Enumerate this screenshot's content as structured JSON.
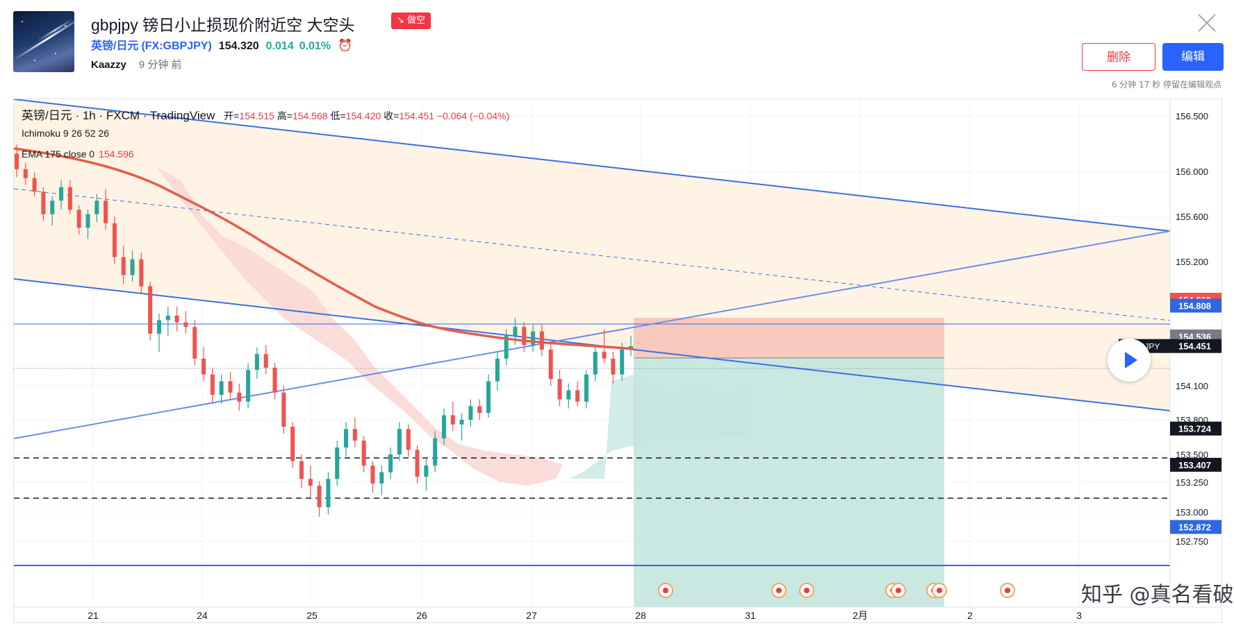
{
  "idea": {
    "title": "gbpjpy 镑日小止损现价附近空 大空头",
    "badge": "↘ 做空",
    "symbol_name": "英镑/日元",
    "symbol_code": "(FX:GBPJPY)",
    "price": "154.320",
    "change": "0.014",
    "change_pct": "0.01%",
    "author": "Kaazzy",
    "time_ago": "9 分钟 前",
    "delete_label": "删除",
    "edit_label": "编辑",
    "edit_note": "6 分钟 17 秒 停留在编辑观点"
  },
  "legend": {
    "symbol": "英镑/日元 · 1h · FXCM · TradingView",
    "open_label": "开=",
    "open": "154.515",
    "high_label": "高=",
    "high": "154.568",
    "low_label": "低=",
    "low": "154.420",
    "close_label": "收=",
    "close": "154.451",
    "change": "−0.064 (−0.04%)",
    "ichimoku": "Ichimoku 9 26 52 26",
    "ema_label": "EMA 175 close 0",
    "ema_value": "154.596"
  },
  "watermark": "知乎 @真名看破",
  "colors": {
    "up": "#26a69a",
    "down": "#ef5350",
    "ema": "#e65b4b",
    "line": "#2f67e0",
    "loss_zone": "#f6c7bd",
    "profit_zone": "#c4e6df",
    "channel": "#fff3e5",
    "cloud": "#f9d7d5",
    "cloud_up": "#d2ece8"
  },
  "chart_data": {
    "type": "candlestick",
    "symbol": "GBPJPY",
    "timeframe": "1h",
    "price_axis": {
      "ticks": [
        "156.500",
        "156.000",
        "155.600",
        "155.200",
        "154.100",
        "153.800",
        "153.500",
        "153.250",
        "153.000",
        "152.750"
      ],
      "labels": [
        {
          "value": "154.860",
          "color": "#ef5350"
        },
        {
          "value": "154.808",
          "color": "#2f67e0"
        },
        {
          "value": "154.536",
          "color": "#787b86"
        },
        {
          "value": "154.451",
          "color": "#131722",
          "tag": "GBPJPY"
        },
        {
          "value": "153.724",
          "color": "#131722"
        },
        {
          "value": "153.407",
          "color": "#131722"
        },
        {
          "value": "152.872",
          "color": "#2f67e0"
        }
      ]
    },
    "time_axis": {
      "ticks": [
        "21",
        "24",
        "25",
        "26",
        "27",
        "28",
        "31",
        "2月",
        "2",
        "3"
      ],
      "ticks_x": [
        0.5,
        1.5,
        2.5,
        3.5,
        4.5,
        5.5,
        6.5,
        7.5,
        8.5,
        9.5
      ]
    },
    "candles_ohlc": [
      [
        156.16,
        156.24,
        155.95,
        156.02
      ],
      [
        156.02,
        156.08,
        155.88,
        155.94
      ],
      [
        155.94,
        155.99,
        155.78,
        155.82
      ],
      [
        155.82,
        155.86,
        155.56,
        155.62
      ],
      [
        155.62,
        155.78,
        155.52,
        155.74
      ],
      [
        155.74,
        155.92,
        155.66,
        155.86
      ],
      [
        155.86,
        155.92,
        155.62,
        155.66
      ],
      [
        155.66,
        155.7,
        155.44,
        155.5
      ],
      [
        155.5,
        155.66,
        155.4,
        155.62
      ],
      [
        155.62,
        155.8,
        155.55,
        155.74
      ],
      [
        155.74,
        155.84,
        155.48,
        155.54
      ],
      [
        155.54,
        155.6,
        155.18,
        155.24
      ],
      [
        155.24,
        155.34,
        155.0,
        155.08
      ],
      [
        155.08,
        155.3,
        155.02,
        155.22
      ],
      [
        155.22,
        155.28,
        154.92,
        154.98
      ],
      [
        154.98,
        155.02,
        154.5,
        154.56
      ],
      [
        154.56,
        154.74,
        154.4,
        154.68
      ],
      [
        154.68,
        154.8,
        154.54,
        154.72
      ],
      [
        154.72,
        154.8,
        154.58,
        154.66
      ],
      [
        154.66,
        154.76,
        154.56,
        154.62
      ],
      [
        154.62,
        154.68,
        154.28,
        154.34
      ],
      [
        154.34,
        154.44,
        154.14,
        154.2
      ],
      [
        154.2,
        154.26,
        153.94,
        154.02
      ],
      [
        154.02,
        154.2,
        153.94,
        154.14
      ],
      [
        154.14,
        154.22,
        153.98,
        154.04
      ],
      [
        154.04,
        154.12,
        153.88,
        153.96
      ],
      [
        153.96,
        154.3,
        153.9,
        154.24
      ],
      [
        154.24,
        154.44,
        154.16,
        154.38
      ],
      [
        154.38,
        154.46,
        154.2,
        154.26
      ],
      [
        154.26,
        154.3,
        153.98,
        154.04
      ],
      [
        154.04,
        154.1,
        153.68,
        153.74
      ],
      [
        153.74,
        153.78,
        153.38,
        153.44
      ],
      [
        153.44,
        153.5,
        153.2,
        153.28
      ],
      [
        153.28,
        153.4,
        153.12,
        153.22
      ],
      [
        153.22,
        153.26,
        152.96,
        153.04
      ],
      [
        153.04,
        153.34,
        152.98,
        153.28
      ],
      [
        153.28,
        153.62,
        153.22,
        153.56
      ],
      [
        153.56,
        153.78,
        153.48,
        153.72
      ],
      [
        153.72,
        153.82,
        153.56,
        153.62
      ],
      [
        153.62,
        153.66,
        153.34,
        153.4
      ],
      [
        153.4,
        153.44,
        153.16,
        153.24
      ],
      [
        153.24,
        153.4,
        153.14,
        153.34
      ],
      [
        153.34,
        153.56,
        153.28,
        153.5
      ],
      [
        153.5,
        153.78,
        153.44,
        153.72
      ],
      [
        153.72,
        153.76,
        153.48,
        153.54
      ],
      [
        153.54,
        153.58,
        153.24,
        153.3
      ],
      [
        153.3,
        153.46,
        153.18,
        153.4
      ],
      [
        153.4,
        153.7,
        153.34,
        153.64
      ],
      [
        153.64,
        153.9,
        153.58,
        153.84
      ],
      [
        153.84,
        153.96,
        153.7,
        153.76
      ],
      [
        153.76,
        153.86,
        153.62,
        153.8
      ],
      [
        153.8,
        153.98,
        153.74,
        153.92
      ],
      [
        153.92,
        153.98,
        153.8,
        153.86
      ],
      [
        153.86,
        154.2,
        153.82,
        154.14
      ],
      [
        154.14,
        154.4,
        154.06,
        154.34
      ],
      [
        154.34,
        154.6,
        154.28,
        154.54
      ],
      [
        154.54,
        154.7,
        154.46,
        154.62
      ],
      [
        154.62,
        154.66,
        154.4,
        154.46
      ],
      [
        154.46,
        154.64,
        154.4,
        154.58
      ],
      [
        154.58,
        154.64,
        154.36,
        154.42
      ],
      [
        154.42,
        154.48,
        154.1,
        154.16
      ],
      [
        154.16,
        154.24,
        153.92,
        153.98
      ],
      [
        153.98,
        154.12,
        153.9,
        154.06
      ],
      [
        154.06,
        154.14,
        153.92,
        153.96
      ],
      [
        153.96,
        154.24,
        153.9,
        154.2
      ],
      [
        154.2,
        154.44,
        154.14,
        154.4
      ],
      [
        154.4,
        154.6,
        154.3,
        154.34
      ],
      [
        154.34,
        154.4,
        154.12,
        154.2
      ],
      [
        154.2,
        154.48,
        154.14,
        154.42
      ],
      [
        154.42,
        154.54,
        154.36,
        154.45
      ]
    ]
  }
}
